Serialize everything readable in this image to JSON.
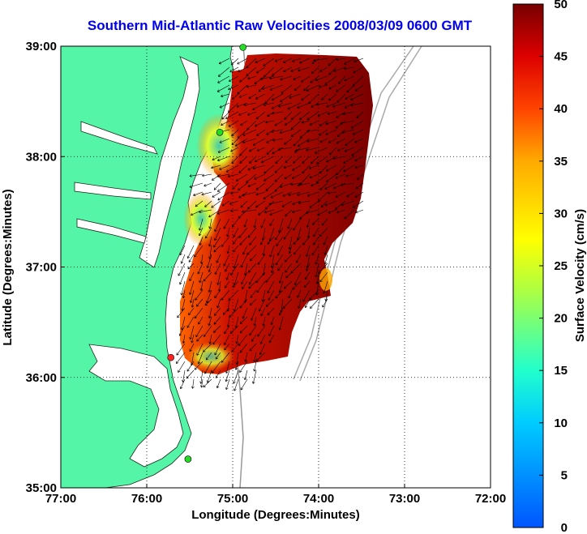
{
  "title": "Southern Mid-Atlantic Raw Velocities 2008/03/09 0600 GMT",
  "map": {
    "x_axis": {
      "label": "Longitude (Degrees:Minutes)",
      "range": [
        -77,
        -72
      ],
      "ticks": [
        {
          "value": -77,
          "label": "77:00"
        },
        {
          "value": -76,
          "label": "76:00"
        },
        {
          "value": -75,
          "label": "75:00"
        },
        {
          "value": -74,
          "label": "74:00"
        },
        {
          "value": -73,
          "label": "73:00"
        },
        {
          "value": -72,
          "label": "72:00"
        }
      ]
    },
    "y_axis": {
      "label": "Latitude (Degrees:Minutes)",
      "range": [
        35,
        39
      ],
      "ticks": [
        {
          "value": 35,
          "label": "35:00"
        },
        {
          "value": 36,
          "label": "36:00"
        },
        {
          "value": 37,
          "label": "37:00"
        },
        {
          "value": 38,
          "label": "38:00"
        },
        {
          "value": 39,
          "label": "39:00"
        }
      ]
    },
    "grid": "dotted",
    "land_color": "#55f5a8",
    "vector_color": "#000000",
    "stations": [
      {
        "lon": -74.88,
        "lat": 38.99,
        "color": "#22dd22"
      },
      {
        "lon": -75.15,
        "lat": 38.22,
        "color": "#22dd22"
      },
      {
        "lon": -75.72,
        "lat": 36.18,
        "color": "#ff2222"
      },
      {
        "lon": -75.52,
        "lat": 35.26,
        "color": "#22dd22"
      }
    ]
  },
  "colorbar": {
    "label": "Surface Velocity (cm/s)",
    "min": 0,
    "max": 50,
    "ticks": [
      {
        "value": 0,
        "label": "0"
      },
      {
        "value": 5,
        "label": "5"
      },
      {
        "value": 10,
        "label": "10"
      },
      {
        "value": 15,
        "label": "15"
      },
      {
        "value": 20,
        "label": "20"
      },
      {
        "value": 25,
        "label": "25"
      },
      {
        "value": 30,
        "label": "30"
      },
      {
        "value": 35,
        "label": "35"
      },
      {
        "value": 40,
        "label": "40"
      },
      {
        "value": 45,
        "label": "45"
      },
      {
        "value": 50,
        "label": "50"
      }
    ]
  }
}
